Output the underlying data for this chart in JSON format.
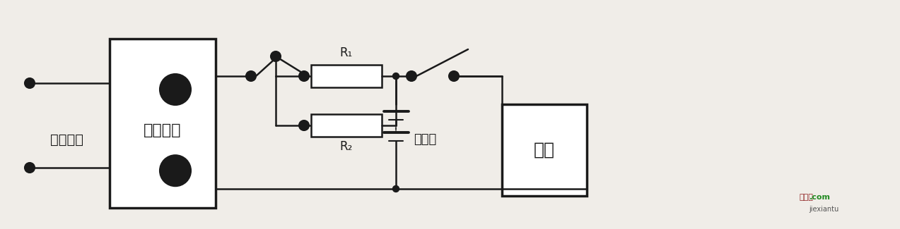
{
  "bg_color": "#f0ede8",
  "line_color": "#1a1a1a",
  "figsize": [
    12.73,
    3.25
  ],
  "dpi": 100,
  "ac_label": "交流输入",
  "dc_label": "直流电源",
  "battery_label": "电池组",
  "load_label": "负载",
  "r1_label": "R₁",
  "r2_label": "R₂",
  "watermark1": "接线图",
  "watermark2": ".com",
  "watermark3": "jiexiantu"
}
